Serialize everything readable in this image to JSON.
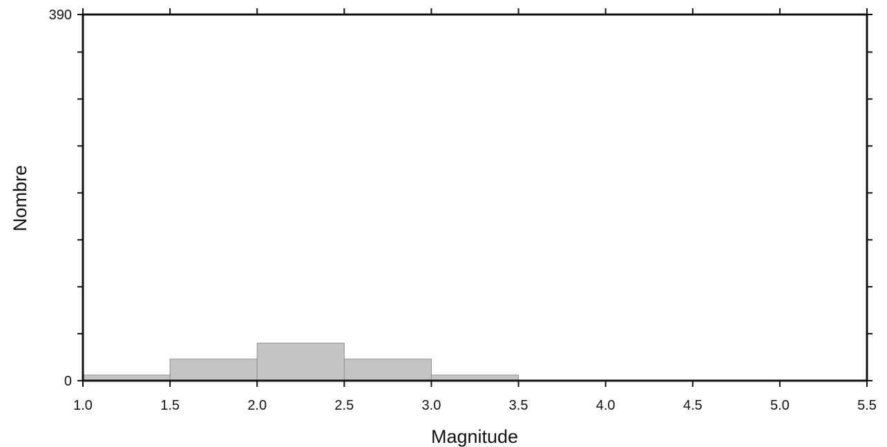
{
  "chart_data": {
    "type": "bar",
    "title": "",
    "xlabel": "Magnitude",
    "ylabel": "Nombre",
    "bins": [
      {
        "from": 1.0,
        "to": 1.5,
        "value": 6
      },
      {
        "from": 1.5,
        "to": 2.0,
        "value": 23
      },
      {
        "from": 2.0,
        "to": 2.5,
        "value": 40
      },
      {
        "from": 2.5,
        "to": 3.0,
        "value": 23
      },
      {
        "from": 3.0,
        "to": 3.5,
        "value": 6
      }
    ],
    "xlim": [
      1.0,
      5.5
    ],
    "ylim": [
      0,
      390
    ],
    "x_ticks": [
      "1.0",
      "1.5",
      "2.0",
      "2.5",
      "3.0",
      "3.5",
      "4.0",
      "4.5",
      "5.0",
      "5.5"
    ],
    "y_tick_labels": [
      "0",
      "390"
    ],
    "y_minor_ticks": [
      0,
      50,
      100,
      150,
      200,
      250,
      300,
      350,
      390
    ],
    "grid": false,
    "legend": "none",
    "colors": {
      "bar_fill": "#c4c4c4",
      "bar_stroke": "#8f8f8f",
      "frame": "#111111"
    }
  }
}
